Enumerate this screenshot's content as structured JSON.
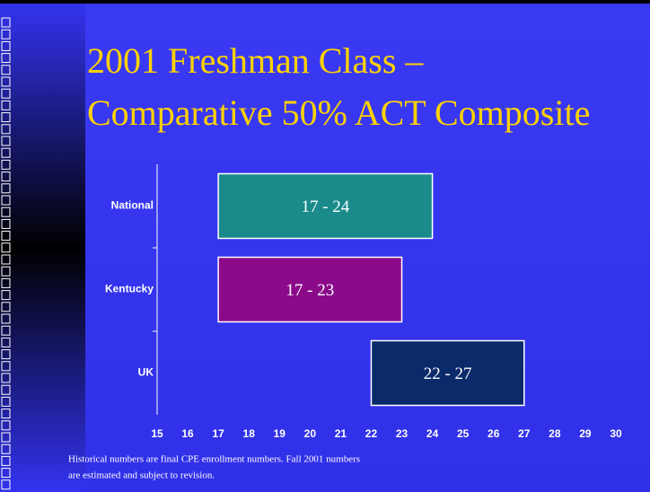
{
  "chart_data": {
    "type": "floating-bar",
    "title": [
      "2001 Freshman Class –",
      "Comparative 50% ACT Composite"
    ],
    "categories": [
      "National",
      "Kentucky",
      "UK"
    ],
    "values": [
      [
        17,
        24
      ],
      [
        17,
        23
      ],
      [
        22,
        27
      ]
    ],
    "value_labels": [
      "17 - 24",
      "17 - 23",
      "22 - 27"
    ],
    "colors": [
      "#1a8a8a",
      "#8a0a8a",
      "#0a2a6a"
    ],
    "xlim": [
      15,
      30
    ],
    "xticks": [
      15,
      16,
      17,
      18,
      19,
      20,
      21,
      22,
      23,
      24,
      25,
      26,
      27,
      28,
      29,
      30
    ],
    "footnote": [
      "Historical numbers are final CPE enrollment numbers.  Fall 2001 numbers",
      "are estimated and subject to revision."
    ]
  }
}
